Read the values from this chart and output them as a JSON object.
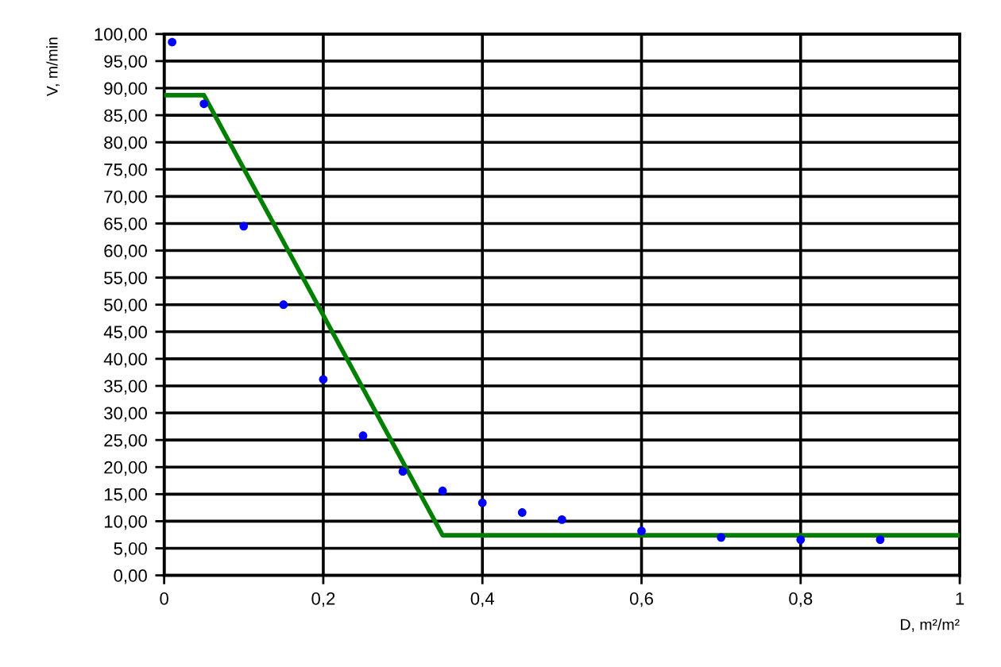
{
  "chart_data": {
    "type": "scatter",
    "xlabel": "D, m²/m²",
    "ylabel": "V, m/min",
    "series": [
      {
        "color": "#0000ff",
        "marker": "circle",
        "x": [
          0.01,
          0.05,
          0.1,
          0.15,
          0.2,
          0.25,
          0.3,
          0.35,
          0.4,
          0.45,
          0.5,
          0.6,
          0.7,
          0.8,
          0.9
        ],
        "values": [
          98.5,
          87.1,
          64.5,
          50,
          36.2,
          25.8,
          19.2,
          15.6,
          13.4,
          11.6,
          10.3,
          8.2,
          7.0,
          6.6,
          6.6
        ]
      },
      {
        "type": "line",
        "color": "#008000",
        "line_style": "solid",
        "x": [
          0,
          0.05,
          0.35,
          1
        ],
        "values": [
          88.7,
          88.7,
          7.4,
          7.4
        ]
      }
    ],
    "xlim": [
      0,
      1
    ],
    "ylim": [
      0,
      100
    ],
    "xticks": [
      0,
      {
        "value": 0.2,
        "label": "0,2"
      },
      {
        "value": 0.4,
        "label": "0,4"
      },
      {
        "value": 0.6,
        "label": "0,6"
      },
      {
        "value": 0.8,
        "label": "0,8"
      },
      1
    ],
    "yticks": [
      {
        "value": 0,
        "label": "0,00"
      },
      {
        "value": 5,
        "label": "5,00"
      },
      {
        "value": 10,
        "label": "10,00"
      },
      {
        "value": 15,
        "label": "15,00"
      },
      {
        "value": 20,
        "label": "20,00"
      },
      {
        "value": 25,
        "label": "25,00"
      },
      {
        "value": 30,
        "label": "30,00"
      },
      {
        "value": 35,
        "label": "35,00"
      },
      {
        "value": 40,
        "label": "40,00"
      },
      {
        "value": 45,
        "label": "45,00"
      },
      {
        "value": 50,
        "label": "50,00"
      },
      {
        "value": 55,
        "label": "55,00"
      },
      {
        "value": 60,
        "label": "60,00"
      },
      {
        "value": 65,
        "label": "65,00"
      },
      {
        "value": 70,
        "label": "70,00"
      },
      {
        "value": 75,
        "label": "75,00"
      },
      {
        "value": 80,
        "label": "80,00"
      },
      {
        "value": 85,
        "label": "85,00"
      },
      {
        "value": 90,
        "label": "90,00"
      },
      {
        "value": 95,
        "label": "95,00"
      },
      {
        "value": 100,
        "label": "100,00"
      }
    ],
    "grid": true
  }
}
